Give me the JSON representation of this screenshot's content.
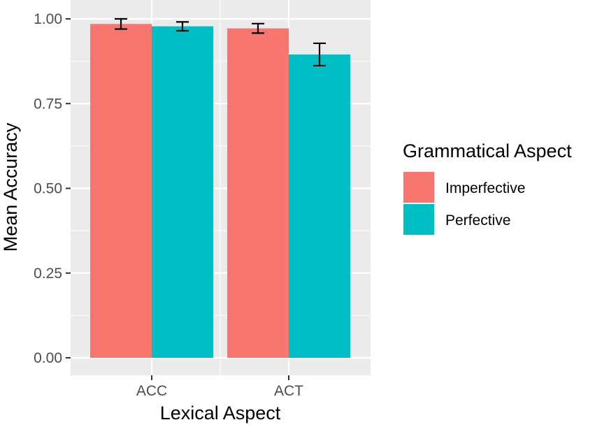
{
  "chart_data": {
    "type": "bar",
    "title": "",
    "xlabel": "Lexical Aspect",
    "ylabel": "Mean Accuracy",
    "categories": [
      "ACC",
      "ACT"
    ],
    "ylim": [
      0,
      1.0
    ],
    "yticks": [
      0.0,
      0.25,
      0.5,
      0.75,
      1.0
    ],
    "ytick_labels": [
      "0.00",
      "0.25",
      "0.50",
      "0.75",
      "1.00"
    ],
    "grid": true,
    "series": [
      {
        "name": "Imperfective",
        "color": "#F8766D",
        "values": [
          0.985,
          0.972
        ],
        "error_low": [
          0.97,
          0.958
        ],
        "error_high": [
          1.0,
          0.986
        ]
      },
      {
        "name": "Perfective",
        "color": "#00BFC4",
        "values": [
          0.978,
          0.895
        ],
        "error_low": [
          0.965,
          0.862
        ],
        "error_high": [
          0.991,
          0.928
        ]
      }
    ],
    "legend": {
      "title": "Grammatical Aspect",
      "position": "right"
    }
  },
  "colors": {
    "panel_background": "#EBEBEB",
    "grid_line": "#FFFFFF",
    "axis_text": "#4D4D4D",
    "axis_title": "#000000",
    "error_bar": "#000000"
  }
}
